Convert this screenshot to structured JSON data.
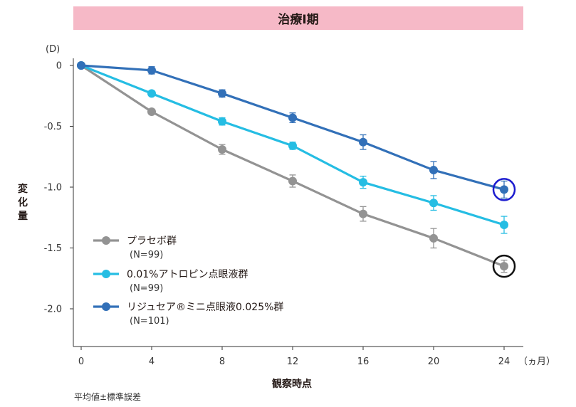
{
  "chart_data": {
    "type": "line",
    "title": "治療Ⅰ期",
    "xlabel": "観察時点",
    "x_unit": "（ヵ月）",
    "ylabel": "変化量",
    "y_unit": "(D)",
    "x": [
      0,
      4,
      8,
      12,
      16,
      20,
      24
    ],
    "xticks": [
      "0",
      "4",
      "8",
      "12",
      "16",
      "20",
      "24"
    ],
    "yticks": [
      "0",
      "-0.5",
      "-1.0",
      "-1.5",
      "-2.0"
    ],
    "ylim": [
      -2.25,
      0.05
    ],
    "footnote": "平均値±標準誤差",
    "series": [
      {
        "name": "プラセボ群",
        "n_label": "(N=99)",
        "color": "#939393",
        "values": [
          0,
          -0.38,
          -0.69,
          -0.95,
          -1.22,
          -1.42,
          -1.65
        ],
        "error": [
          0,
          0.02,
          0.04,
          0.05,
          0.06,
          0.08,
          0.05
        ]
      },
      {
        "name": "0.01%アトロピン点眼液群",
        "n_label": "(N=99)",
        "color": "#25bde3",
        "values": [
          0,
          -0.23,
          -0.46,
          -0.66,
          -0.96,
          -1.13,
          -1.31
        ],
        "error": [
          0,
          0.02,
          0.03,
          0.03,
          0.05,
          0.06,
          0.07
        ]
      },
      {
        "name": "リジュセア®ミニ点眼液0.025%群",
        "n_label": "(N=101)",
        "color": "#3270b8",
        "values": [
          0,
          -0.04,
          -0.23,
          -0.43,
          -0.63,
          -0.86,
          -1.02
        ],
        "error": [
          0,
          0.03,
          0.03,
          0.04,
          0.06,
          0.07,
          0.07
        ]
      }
    ],
    "highlights": [
      {
        "series": "リジュセア®ミニ点眼液0.025%群",
        "x": 24,
        "color": "#1c1ccf"
      },
      {
        "series": "プラセボ群",
        "x": 24,
        "color": "#111111"
      }
    ]
  }
}
